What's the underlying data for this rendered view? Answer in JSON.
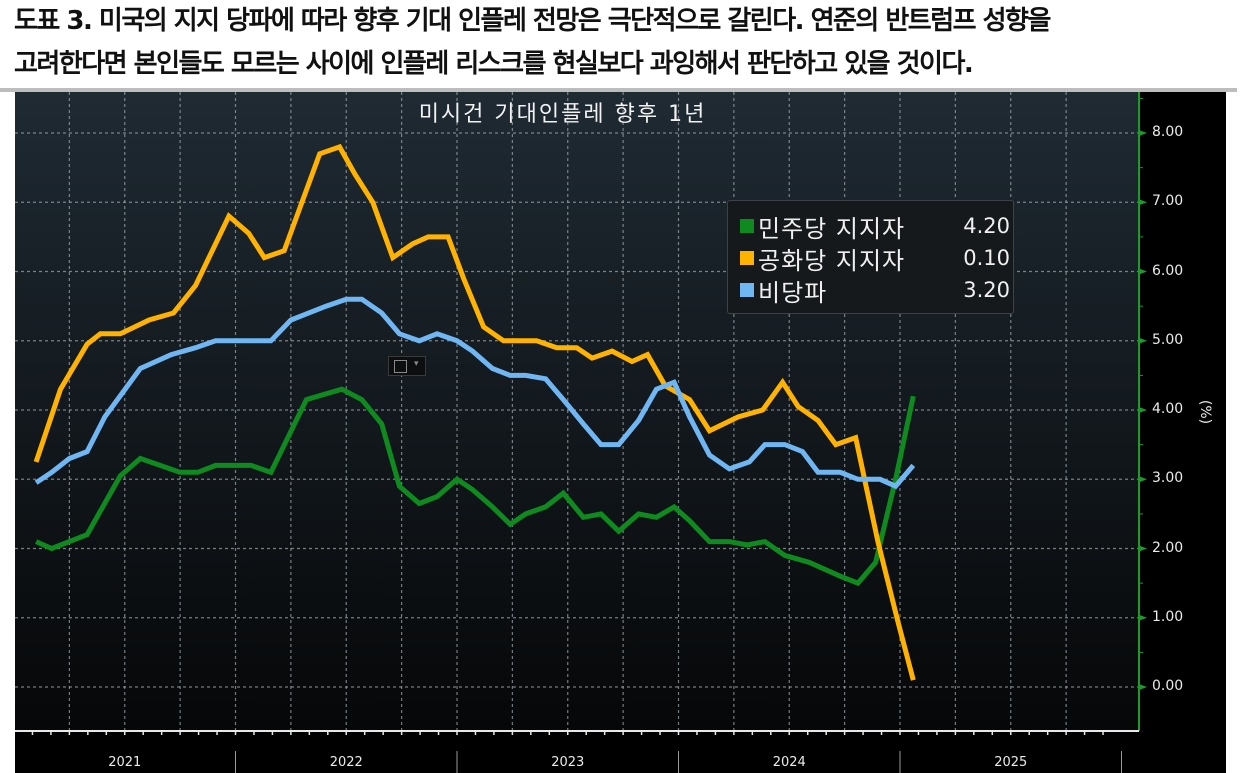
{
  "caption": {
    "line1": "도표 3. 미국의 지지 당파에 따라 향후 기대 인플레 전망은 극단적으로 갈린다. 연준의 반트럼프 성향을",
    "line2": "고려한다면 본인들도 모르는 사이에 인플레 리스크를 현실보다 과잉해서 판단하고 있을 것이다."
  },
  "colors": {
    "democrat": "#0f8a1f",
    "republican": "#ffb300",
    "independent": "#6fb6f2",
    "axis": "#1e9a2a",
    "grid": "#9aa3a8",
    "bg_top": "#1f2a33",
    "bg_bottom": "#060708"
  },
  "chart_data": {
    "type": "line",
    "title": "미시건 기대인플레 향후 1년",
    "xlabel": "",
    "ylabel": "(%)",
    "ylim": [
      -0.6,
      8.6
    ],
    "yticks": [
      "8.00",
      "7.00",
      "6.00",
      "5.00",
      "4.00",
      "3.00",
      "2.00",
      "1.00",
      "0.00"
    ],
    "x_tick_labels": [
      "2021",
      "2022",
      "2023",
      "2024",
      "2025"
    ],
    "x_unit": "fractional year",
    "grid": true,
    "legend_position": "upper right (inside)",
    "series": [
      {
        "name": "민주당 지지자",
        "last_value": "4.20",
        "color": "#0f8a1f",
        "x": [
          2021.1,
          2021.17,
          2021.25,
          2021.33,
          2021.48,
          2021.57,
          2021.66,
          2021.75,
          2021.83,
          2021.91,
          2022.07,
          2022.16,
          2022.32,
          2022.48,
          2022.57,
          2022.66,
          2022.74,
          2022.83,
          2022.91,
          2023.0,
          2023.07,
          2023.16,
          2023.24,
          2023.31,
          2023.4,
          2023.48,
          2023.57,
          2023.65,
          2023.73,
          2023.82,
          2023.9,
          2023.98,
          2024.05,
          2024.14,
          2024.23,
          2024.31,
          2024.39,
          2024.48,
          2024.59,
          2024.73,
          2024.81,
          2024.89,
          2024.98,
          2025.06
        ],
        "values": [
          2.1,
          2.0,
          2.1,
          2.2,
          3.05,
          3.3,
          3.2,
          3.1,
          3.1,
          3.2,
          3.2,
          3.1,
          4.15,
          4.3,
          4.15,
          3.8,
          2.9,
          2.65,
          2.75,
          3.0,
          2.85,
          2.6,
          2.35,
          2.5,
          2.6,
          2.8,
          2.45,
          2.5,
          2.25,
          2.5,
          2.45,
          2.6,
          2.4,
          2.1,
          2.1,
          2.05,
          2.1,
          1.9,
          1.8,
          1.6,
          1.5,
          1.8,
          3.0,
          4.2
        ]
      },
      {
        "name": "공화당 지지자",
        "last_value": "0.10",
        "color": "#ffb300",
        "x": [
          2021.1,
          2021.21,
          2021.33,
          2021.39,
          2021.48,
          2021.61,
          2021.72,
          2021.82,
          2021.97,
          2022.06,
          2022.13,
          2022.22,
          2022.38,
          2022.47,
          2022.54,
          2022.62,
          2022.71,
          2022.8,
          2022.87,
          2022.96,
          2023.03,
          2023.12,
          2023.21,
          2023.36,
          2023.45,
          2023.54,
          2023.61,
          2023.7,
          2023.79,
          2023.86,
          2023.94,
          2024.05,
          2024.14,
          2024.27,
          2024.38,
          2024.47,
          2024.54,
          2024.63,
          2024.71,
          2024.8,
          2024.9,
          2024.99,
          2025.06
        ],
        "values": [
          3.25,
          4.3,
          4.95,
          5.1,
          5.1,
          5.3,
          5.4,
          5.8,
          6.8,
          6.55,
          6.2,
          6.3,
          7.7,
          7.8,
          7.4,
          7.0,
          6.2,
          6.4,
          6.5,
          6.5,
          5.9,
          5.2,
          5.0,
          5.0,
          4.9,
          4.9,
          4.75,
          4.85,
          4.7,
          4.8,
          4.35,
          4.15,
          3.7,
          3.9,
          4.0,
          4.4,
          4.05,
          3.85,
          3.5,
          3.6,
          2.1,
          0.95,
          0.1
        ]
      },
      {
        "name": "비당파",
        "last_value": "3.20",
        "color": "#6fb6f2",
        "x": [
          2021.1,
          2021.17,
          2021.25,
          2021.33,
          2021.41,
          2021.57,
          2021.71,
          2021.82,
          2021.91,
          2022.16,
          2022.25,
          2022.41,
          2022.5,
          2022.57,
          2022.66,
          2022.74,
          2022.83,
          2022.91,
          2023.0,
          2023.07,
          2023.16,
          2023.24,
          2023.31,
          2023.4,
          2023.48,
          2023.57,
          2023.65,
          2023.73,
          2023.82,
          2023.9,
          2023.98,
          2024.05,
          2024.14,
          2024.23,
          2024.32,
          2024.39,
          2024.48,
          2024.56,
          2024.63,
          2024.73,
          2024.81,
          2024.91,
          2024.98,
          2025.06
        ],
        "values": [
          2.95,
          3.1,
          3.3,
          3.4,
          3.9,
          4.6,
          4.8,
          4.9,
          5.0,
          5.0,
          5.3,
          5.5,
          5.6,
          5.6,
          5.4,
          5.1,
          5.0,
          5.1,
          5.0,
          4.85,
          4.6,
          4.5,
          4.5,
          4.45,
          4.15,
          3.8,
          3.5,
          3.5,
          3.85,
          4.3,
          4.4,
          3.9,
          3.35,
          3.15,
          3.25,
          3.5,
          3.5,
          3.4,
          3.1,
          3.1,
          3.0,
          3.0,
          2.9,
          3.2
        ]
      }
    ]
  }
}
